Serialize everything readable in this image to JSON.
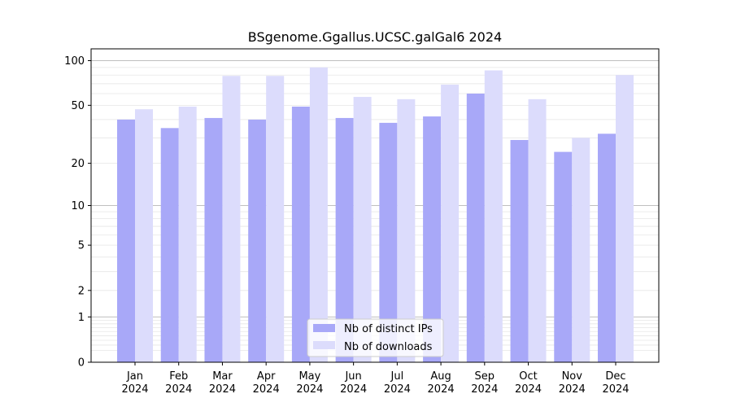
{
  "chart_data": {
    "type": "bar",
    "title": "BSgenome.Ggallus.UCSC.galGal6 2024",
    "xlabel": "",
    "ylabel": "",
    "yscale": "log(y+1)",
    "ylim": [
      0,
      120
    ],
    "yticks": [
      0,
      1,
      2,
      5,
      10,
      20,
      50,
      100
    ],
    "grid": "horizontal",
    "legend": "lower-center",
    "categories": [
      "Jan\n2024",
      "Feb\n2024",
      "Mar\n2024",
      "Apr\n2024",
      "May\n2024",
      "Jun\n2024",
      "Jul\n2024",
      "Aug\n2024",
      "Sep\n2024",
      "Oct\n2024",
      "Nov\n2024",
      "Dec\n2024"
    ],
    "series": [
      {
        "name": "Nb of distinct IPs",
        "color": "#a8a8f8",
        "values": [
          40,
          35,
          41,
          40,
          49,
          41,
          38,
          42,
          60,
          29,
          24,
          32
        ]
      },
      {
        "name": "Nb of downloads",
        "color": "#dcdcfc",
        "values": [
          47,
          49,
          79,
          79,
          90,
          57,
          55,
          69,
          86,
          55,
          30,
          80
        ]
      }
    ]
  }
}
